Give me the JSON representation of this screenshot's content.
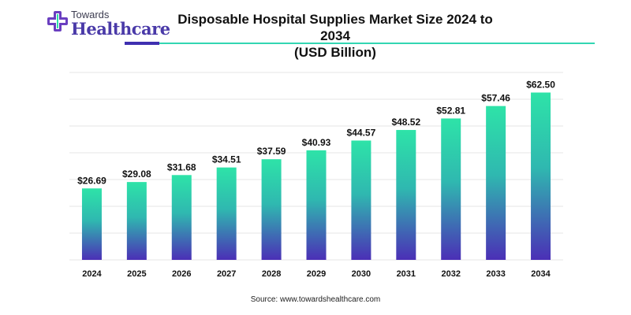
{
  "brand": {
    "top": "Towards",
    "bottom": "Healthcare"
  },
  "chart_data": {
    "type": "bar",
    "title_line1": "Disposable Hospital Supplies Market Size 2024 to 2034",
    "title_line2": "(USD Billion)",
    "categories": [
      "2024",
      "2025",
      "2026",
      "2027",
      "2028",
      "2029",
      "2030",
      "2031",
      "2032",
      "2033",
      "2034"
    ],
    "values": [
      26.69,
      29.08,
      31.68,
      34.51,
      37.59,
      40.93,
      44.57,
      48.52,
      52.81,
      57.46,
      62.5
    ],
    "data_labels": [
      "$26.69",
      "$29.08",
      "$31.68",
      "$34.51",
      "$37.59",
      "$40.93",
      "$44.57",
      "$48.52",
      "$52.81",
      "$57.46",
      "$62.50"
    ],
    "ylim": [
      0,
      70
    ],
    "grid": true,
    "xlabel": "",
    "ylabel": "",
    "colors": {
      "bar_top": "#2ee3a8",
      "bar_bottom": "#4b2fb6",
      "grid": "#e6e6e6"
    }
  },
  "source": "Source: www.towardshealthcare.com"
}
